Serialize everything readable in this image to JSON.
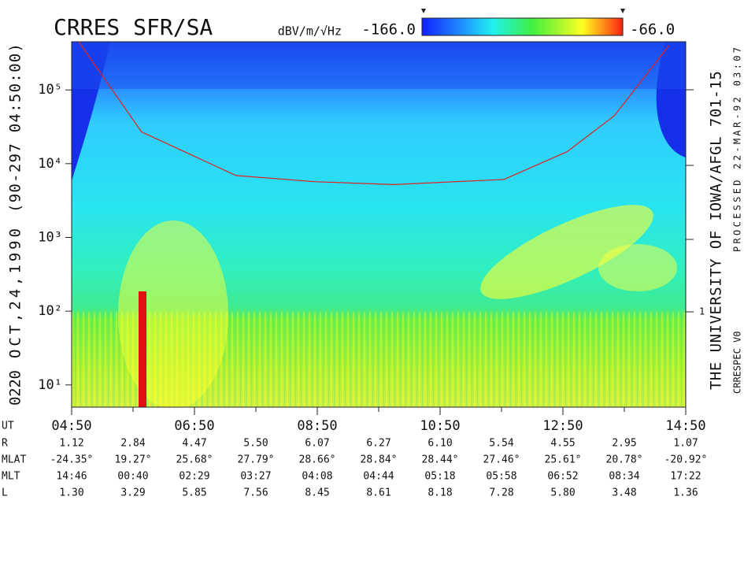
{
  "chart_data": {
    "type": "spectrogram",
    "title": "CRRES SFR/SA",
    "colorbar": {
      "unit": "dBV/m/√Hz",
      "min_label": "-166.0",
      "max_label": "-66.0"
    },
    "side_left": [
      "0220",
      "OCT,24,1990",
      "(90-297 04:50:00)"
    ],
    "side_right": [
      "THE UNIVERSITY OF IOWA/AFGL 701-15",
      "CRRESPEC V0",
      "PROCESSED 22-MAR-92  03:07"
    ],
    "right_axis_label": "1",
    "log_y": true,
    "ylim": [
      5,
      450000
    ],
    "yticks": [
      {
        "value": 10,
        "label": "10¹"
      },
      {
        "value": 100,
        "label": "10²"
      },
      {
        "value": 1000,
        "label": "10³"
      },
      {
        "value": 10000,
        "label": "10⁴"
      },
      {
        "value": 100000,
        "label": "10⁵"
      }
    ],
    "xlim": [
      4.8333,
      14.8333
    ],
    "xticks": [
      {
        "value": 4.8333,
        "label": "04:50"
      },
      {
        "value": 6.8333,
        "label": "06:50"
      },
      {
        "value": 8.8333,
        "label": "08:50"
      },
      {
        "value": 10.8333,
        "label": "10:50"
      },
      {
        "value": 12.8333,
        "label": "12:50"
      },
      {
        "value": 14.8333,
        "label": "14:50"
      }
    ],
    "xminor_ticks": [
      5.8333,
      7.8333,
      9.8333,
      11.8333,
      13.8333
    ],
    "curve": {
      "color": "#e02020",
      "x": [
        4.95,
        5.46,
        5.97,
        7.51,
        8.79,
        10.08,
        11.87,
        12.9,
        13.67,
        14.56
      ],
      "values": [
        450000,
        110000,
        27000,
        6900,
        5700,
        5200,
        6100,
        14500,
        44600,
        400000
      ]
    },
    "ephemeris": {
      "labels": [
        "UT",
        "R",
        "MLAT",
        "MLT",
        "L"
      ],
      "rows": [
        [
          "1.12",
          "2.84",
          "4.47",
          "5.50",
          "6.07",
          "6.27",
          "6.10",
          "5.54",
          "4.55",
          "2.95",
          "1.07"
        ],
        [
          "-24.35°",
          "19.27°",
          "25.68°",
          "27.79°",
          "28.66°",
          "28.84°",
          "28.44°",
          "27.46°",
          "25.61°",
          "20.78°",
          "-20.92°"
        ],
        [
          "14:46",
          "00:40",
          "02:29",
          "03:27",
          "04:08",
          "04:44",
          "05:18",
          "05:58",
          "06:52",
          "08:34",
          "17:22"
        ],
        [
          "1.30",
          "3.29",
          "5.85",
          "7.56",
          "8.45",
          "8.61",
          "8.18",
          "7.28",
          "5.80",
          "3.48",
          "1.36"
        ]
      ]
    }
  }
}
